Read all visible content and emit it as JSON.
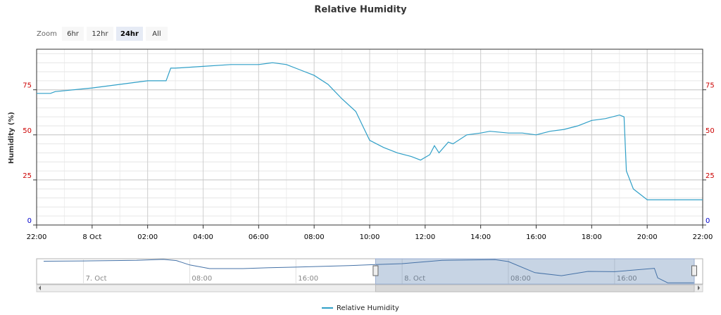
{
  "chart_data": {
    "type": "line",
    "title": "Relative Humidity",
    "y_axis_label": "Humidity (%)",
    "zoom": {
      "label": "Zoom",
      "buttons": [
        "6hr",
        "12hr",
        "24hr",
        "All"
      ],
      "active": 2
    },
    "x": [
      "7 Oct 22:00",
      "7 Oct 22:30",
      "7 Oct 22:40",
      "8 Oct 00:00",
      "8 Oct 01:00",
      "8 Oct 02:00",
      "8 Oct 02:40",
      "8 Oct 02:50",
      "8 Oct 03:00",
      "8 Oct 04:00",
      "8 Oct 05:00",
      "8 Oct 06:00",
      "8 Oct 06:30",
      "8 Oct 07:00",
      "8 Oct 07:30",
      "8 Oct 08:00",
      "8 Oct 08:30",
      "8 Oct 09:00",
      "8 Oct 09:30",
      "8 Oct 09:45",
      "8 Oct 10:00",
      "8 Oct 10:30",
      "8 Oct 11:00",
      "8 Oct 11:30",
      "8 Oct 11:50",
      "8 Oct 12:10",
      "8 Oct 12:20",
      "8 Oct 12:30",
      "8 Oct 12:50",
      "8 Oct 13:00",
      "8 Oct 13:30",
      "8 Oct 14:00",
      "8 Oct 14:20",
      "8 Oct 15:00",
      "8 Oct 15:30",
      "8 Oct 16:00",
      "8 Oct 16:30",
      "8 Oct 17:00",
      "8 Oct 17:30",
      "8 Oct 18:00",
      "8 Oct 18:30",
      "8 Oct 19:00",
      "8 Oct 19:10",
      "8 Oct 19:15",
      "8 Oct 19:30",
      "8 Oct 20:00",
      "8 Oct 21:00",
      "8 Oct 22:00"
    ],
    "series": [
      {
        "name": "Relative Humidity",
        "color": "#2f9fc7",
        "values": [
          73,
          73,
          74,
          76,
          78,
          80,
          80,
          87,
          87,
          88,
          89,
          89,
          90,
          89,
          86,
          83,
          78,
          70,
          63,
          55,
          47,
          43,
          40,
          38,
          36,
          39,
          44,
          40,
          46,
          45,
          50,
          51,
          52,
          51,
          51,
          50,
          52,
          53,
          55,
          58,
          59,
          61,
          60,
          30,
          20,
          14,
          14,
          14
        ]
      }
    ],
    "xlim": [
      "7 Oct 22:00",
      "8 Oct 22:00"
    ],
    "xticks": [
      {
        "value": "7 Oct 22:00",
        "label": "22:00"
      },
      {
        "value": "8 Oct 00:00",
        "label": "8 Oct"
      },
      {
        "value": "8 Oct 02:00",
        "label": "02:00"
      },
      {
        "value": "8 Oct 04:00",
        "label": "04:00"
      },
      {
        "value": "8 Oct 06:00",
        "label": "06:00"
      },
      {
        "value": "8 Oct 08:00",
        "label": "08:00"
      },
      {
        "value": "8 Oct 10:00",
        "label": "10:00"
      },
      {
        "value": "8 Oct 12:00",
        "label": "12:00"
      },
      {
        "value": "8 Oct 14:00",
        "label": "14:00"
      },
      {
        "value": "8 Oct 16:00",
        "label": "16:00"
      },
      {
        "value": "8 Oct 18:00",
        "label": "18:00"
      },
      {
        "value": "8 Oct 20:00",
        "label": "20:00"
      },
      {
        "value": "8 Oct 22:00",
        "label": "22:00"
      }
    ],
    "ylim": [
      0,
      97.5
    ],
    "yticks": [
      0,
      25,
      50,
      75
    ],
    "ytick_label_colors": [
      "#0000cc",
      "#cc0000",
      "#cc0000",
      "#cc0000"
    ],
    "x_minor_tick_hours": 1,
    "y_minor_tick": 5,
    "grid": true,
    "legend": "bottom",
    "navigator": {
      "x": [
        "6 Oct 21:00",
        "7 Oct 00:00",
        "7 Oct 04:00",
        "7 Oct 06:00",
        "7 Oct 07:00",
        "7 Oct 08:00",
        "7 Oct 09:30",
        "7 Oct 12:00",
        "7 Oct 14:00",
        "7 Oct 16:00",
        "7 Oct 20:00",
        "7 Oct 22:00",
        "8 Oct 00:00",
        "8 Oct 03:00",
        "8 Oct 07:00",
        "8 Oct 08:00",
        "8 Oct 10:00",
        "8 Oct 12:00",
        "8 Oct 14:00",
        "8 Oct 16:00",
        "8 Oct 19:00",
        "8 Oct 19:15",
        "8 Oct 20:00",
        "8 Oct 22:00"
      ],
      "values": [
        84,
        85,
        87,
        90,
        86,
        72,
        60,
        60,
        63,
        65,
        70,
        73,
        76,
        87,
        89,
        83,
        47,
        37,
        51,
        50,
        61,
        30,
        14,
        14
      ],
      "xlim": [
        "6 Oct 21:00",
        "8 Oct 22:00"
      ],
      "ylim": [
        10,
        92
      ],
      "selection": [
        "7 Oct 22:00",
        "8 Oct 22:00"
      ],
      "xticks": [
        {
          "value": "7 Oct 00:00",
          "label": "7. Oct"
        },
        {
          "value": "7 Oct 08:00",
          "label": "08:00"
        },
        {
          "value": "7 Oct 16:00",
          "label": "16:00"
        },
        {
          "value": "8 Oct 00:00",
          "label": "8. Oct"
        },
        {
          "value": "8 Oct 08:00",
          "label": "08:00"
        },
        {
          "value": "8 Oct 16:00",
          "label": "16:00"
        }
      ]
    }
  }
}
